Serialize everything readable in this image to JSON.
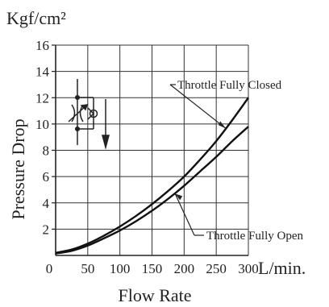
{
  "chart_data": {
    "type": "line",
    "title": "",
    "xlabel": "Flow Rate",
    "ylabel": "Pressure Drop",
    "x_unit": "L/min.",
    "y_unit": "Kgf/cm²",
    "xlim": [
      0,
      300
    ],
    "ylim": [
      0,
      16
    ],
    "x_ticks": [
      0,
      50,
      100,
      150,
      200,
      250,
      300
    ],
    "y_ticks": [
      2,
      4,
      6,
      8,
      10,
      12,
      14,
      16
    ],
    "grid": true,
    "series": [
      {
        "name": "Throttle Fully Closed",
        "x": [
          0,
          25,
          50,
          75,
          100,
          125,
          150,
          175,
          200,
          225,
          250,
          275,
          300
        ],
        "y": [
          0.2,
          0.45,
          0.9,
          1.5,
          2.2,
          3.0,
          3.9,
          4.9,
          6.0,
          7.3,
          8.7,
          10.3,
          12.0
        ]
      },
      {
        "name": "Throttle Fully Open",
        "x": [
          0,
          25,
          50,
          75,
          100,
          125,
          150,
          175,
          200,
          225,
          250,
          275,
          300
        ],
        "y": [
          0.15,
          0.35,
          0.75,
          1.3,
          1.9,
          2.6,
          3.4,
          4.3,
          5.3,
          6.4,
          7.5,
          8.7,
          9.8
        ]
      }
    ],
    "annotations": [
      {
        "text": "Throttle Fully Closed",
        "series": 0,
        "at_x": 265
      },
      {
        "text": "Throttle Fully Open",
        "series": 1,
        "at_x": 255
      }
    ],
    "symbol_icon": "throttle-check-valve-icon"
  }
}
